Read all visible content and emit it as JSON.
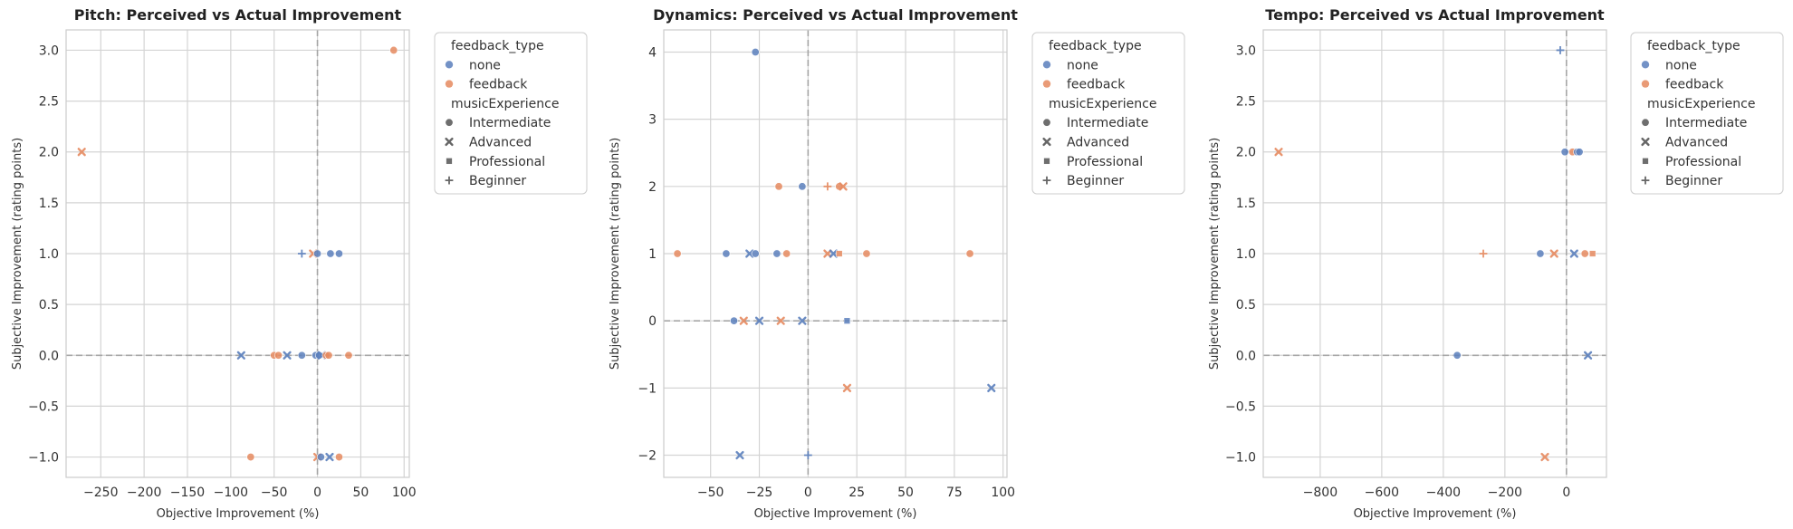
{
  "legend": {
    "hue_title": "feedback_type",
    "hue_items": [
      "none",
      "feedback"
    ],
    "style_title": "musicExperience",
    "style_items": [
      "Intermediate",
      "Advanced",
      "Professional",
      "Beginner"
    ]
  },
  "colors": {
    "none": "#5b7fbc",
    "feedback": "#e58a5f"
  },
  "chart_data": [
    {
      "type": "scatter",
      "title": "Pitch: Perceived vs Actual Improvement",
      "xlabel": "Objective Improvement (%)",
      "ylabel": "Subjective Improvement (rating points)",
      "xlim": [
        -290,
        106
      ],
      "ylim": [
        -1.2,
        3.2
      ],
      "xticks": [
        -250,
        -200,
        -150,
        -100,
        -50,
        0,
        50,
        100
      ],
      "yticks": [
        -1.0,
        -0.5,
        0.0,
        0.5,
        1.0,
        1.5,
        2.0,
        2.5,
        3.0
      ],
      "grid": true,
      "legend_position": "outside right",
      "reference_lines": {
        "x": 0,
        "y": 0
      },
      "points": [
        {
          "x": 88,
          "y": 3,
          "feedback_type": "feedback",
          "musicExperience": "Intermediate"
        },
        {
          "x": -272,
          "y": 2,
          "feedback_type": "feedback",
          "musicExperience": "Advanced"
        },
        {
          "x": -18,
          "y": 1,
          "feedback_type": "none",
          "musicExperience": "Beginner"
        },
        {
          "x": -5,
          "y": 1,
          "feedback_type": "feedback",
          "musicExperience": "Advanced"
        },
        {
          "x": 0,
          "y": 1,
          "feedback_type": "none",
          "musicExperience": "Intermediate"
        },
        {
          "x": 15,
          "y": 1,
          "feedback_type": "none",
          "musicExperience": "Intermediate"
        },
        {
          "x": 25,
          "y": 1,
          "feedback_type": "none",
          "musicExperience": "Intermediate"
        },
        {
          "x": -88,
          "y": 0,
          "feedback_type": "none",
          "musicExperience": "Advanced"
        },
        {
          "x": -50,
          "y": 0,
          "feedback_type": "feedback",
          "musicExperience": "Intermediate"
        },
        {
          "x": -45,
          "y": 0,
          "feedback_type": "feedback",
          "musicExperience": "Intermediate"
        },
        {
          "x": -35,
          "y": 0,
          "feedback_type": "none",
          "musicExperience": "Advanced"
        },
        {
          "x": -18,
          "y": 0,
          "feedback_type": "none",
          "musicExperience": "Intermediate"
        },
        {
          "x": -2,
          "y": 0,
          "feedback_type": "none",
          "musicExperience": "Intermediate"
        },
        {
          "x": 2,
          "y": 0,
          "feedback_type": "none",
          "musicExperience": "Intermediate"
        },
        {
          "x": 5,
          "y": 0,
          "feedback_type": "none",
          "musicExperience": "Advanced"
        },
        {
          "x": 10,
          "y": 0,
          "feedback_type": "feedback",
          "musicExperience": "Intermediate"
        },
        {
          "x": 13,
          "y": 0,
          "feedback_type": "feedback",
          "musicExperience": "Intermediate"
        },
        {
          "x": 36,
          "y": 0,
          "feedback_type": "feedback",
          "musicExperience": "Intermediate"
        },
        {
          "x": -77,
          "y": -1,
          "feedback_type": "feedback",
          "musicExperience": "Intermediate"
        },
        {
          "x": 0,
          "y": -1,
          "feedback_type": "feedback",
          "musicExperience": "Advanced"
        },
        {
          "x": 4,
          "y": -1,
          "feedback_type": "none",
          "musicExperience": "Intermediate"
        },
        {
          "x": 14,
          "y": -1,
          "feedback_type": "none",
          "musicExperience": "Advanced"
        },
        {
          "x": 25,
          "y": -1,
          "feedback_type": "feedback",
          "musicExperience": "Intermediate"
        }
      ]
    },
    {
      "type": "scatter",
      "title": "Dynamics: Perceived vs Actual Improvement",
      "xlabel": "Objective Improvement (%)",
      "ylabel": "Subjective Improvement (rating points)",
      "xlim": [
        -74,
        102
      ],
      "ylim": [
        -2.33,
        4.33
      ],
      "xticks": [
        -50,
        -25,
        0,
        25,
        50,
        75,
        100
      ],
      "yticks": [
        -2,
        -1,
        0,
        1,
        2,
        3,
        4
      ],
      "grid": true,
      "legend_position": "outside right",
      "reference_lines": {
        "x": 0,
        "y": 0
      },
      "points": [
        {
          "x": -27,
          "y": 4,
          "feedback_type": "none",
          "musicExperience": "Intermediate"
        },
        {
          "x": -15,
          "y": 2,
          "feedback_type": "feedback",
          "musicExperience": "Intermediate"
        },
        {
          "x": -3,
          "y": 2,
          "feedback_type": "none",
          "musicExperience": "Intermediate"
        },
        {
          "x": 10,
          "y": 2,
          "feedback_type": "feedback",
          "musicExperience": "Beginner"
        },
        {
          "x": 16,
          "y": 2,
          "feedback_type": "feedback",
          "musicExperience": "Intermediate"
        },
        {
          "x": 18,
          "y": 2,
          "feedback_type": "feedback",
          "musicExperience": "Advanced"
        },
        {
          "x": -67,
          "y": 1,
          "feedback_type": "feedback",
          "musicExperience": "Intermediate"
        },
        {
          "x": -42,
          "y": 1,
          "feedback_type": "none",
          "musicExperience": "Intermediate"
        },
        {
          "x": -30,
          "y": 1,
          "feedback_type": "none",
          "musicExperience": "Advanced"
        },
        {
          "x": -27,
          "y": 1,
          "feedback_type": "none",
          "musicExperience": "Intermediate"
        },
        {
          "x": -16,
          "y": 1,
          "feedback_type": "none",
          "musicExperience": "Intermediate"
        },
        {
          "x": -11,
          "y": 1,
          "feedback_type": "feedback",
          "musicExperience": "Intermediate"
        },
        {
          "x": 10,
          "y": 1,
          "feedback_type": "feedback",
          "musicExperience": "Advanced"
        },
        {
          "x": 13,
          "y": 1,
          "feedback_type": "none",
          "musicExperience": "Advanced"
        },
        {
          "x": 16,
          "y": 1,
          "feedback_type": "feedback",
          "musicExperience": "Professional"
        },
        {
          "x": 30,
          "y": 1,
          "feedback_type": "feedback",
          "musicExperience": "Intermediate"
        },
        {
          "x": 83,
          "y": 1,
          "feedback_type": "feedback",
          "musicExperience": "Intermediate"
        },
        {
          "x": -38,
          "y": 0,
          "feedback_type": "none",
          "musicExperience": "Intermediate"
        },
        {
          "x": -33,
          "y": 0,
          "feedback_type": "feedback",
          "musicExperience": "Advanced"
        },
        {
          "x": -25,
          "y": 0,
          "feedback_type": "none",
          "musicExperience": "Advanced"
        },
        {
          "x": -14,
          "y": 0,
          "feedback_type": "feedback",
          "musicExperience": "Advanced"
        },
        {
          "x": -3,
          "y": 0,
          "feedback_type": "none",
          "musicExperience": "Advanced"
        },
        {
          "x": 20,
          "y": 0,
          "feedback_type": "none",
          "musicExperience": "Professional"
        },
        {
          "x": 20,
          "y": -1,
          "feedback_type": "feedback",
          "musicExperience": "Advanced"
        },
        {
          "x": 94,
          "y": -1,
          "feedback_type": "none",
          "musicExperience": "Advanced"
        },
        {
          "x": -35,
          "y": -2,
          "feedback_type": "none",
          "musicExperience": "Advanced"
        },
        {
          "x": 0,
          "y": -2,
          "feedback_type": "none",
          "musicExperience": "Beginner"
        }
      ]
    },
    {
      "type": "scatter",
      "title": "Tempo: Perceived vs Actual Improvement",
      "xlabel": "Objective Improvement (%)",
      "ylabel": "Subjective Improvement (rating points)",
      "xlim": [
        -985,
        130
      ],
      "ylim": [
        -1.2,
        3.2
      ],
      "xticks": [
        -800,
        -600,
        -400,
        -200,
        0
      ],
      "yticks": [
        -1.0,
        -0.5,
        0.0,
        0.5,
        1.0,
        1.5,
        2.0,
        2.5,
        3.0
      ],
      "grid": true,
      "legend_position": "outside right",
      "reference_lines": {
        "x": 0,
        "y": 0
      },
      "points": [
        {
          "x": -20,
          "y": 3,
          "feedback_type": "none",
          "musicExperience": "Beginner"
        },
        {
          "x": -935,
          "y": 2,
          "feedback_type": "feedback",
          "musicExperience": "Advanced"
        },
        {
          "x": -5,
          "y": 2,
          "feedback_type": "none",
          "musicExperience": "Intermediate"
        },
        {
          "x": 20,
          "y": 2,
          "feedback_type": "feedback",
          "musicExperience": "Intermediate"
        },
        {
          "x": 35,
          "y": 2,
          "feedback_type": "none",
          "musicExperience": "Intermediate"
        },
        {
          "x": 42,
          "y": 2,
          "feedback_type": "none",
          "musicExperience": "Intermediate"
        },
        {
          "x": -270,
          "y": 1,
          "feedback_type": "feedback",
          "musicExperience": "Beginner"
        },
        {
          "x": -85,
          "y": 1,
          "feedback_type": "none",
          "musicExperience": "Intermediate"
        },
        {
          "x": -40,
          "y": 1,
          "feedback_type": "feedback",
          "musicExperience": "Advanced"
        },
        {
          "x": 25,
          "y": 1,
          "feedback_type": "none",
          "musicExperience": "Advanced"
        },
        {
          "x": 60,
          "y": 1,
          "feedback_type": "feedback",
          "musicExperience": "Intermediate"
        },
        {
          "x": 85,
          "y": 1,
          "feedback_type": "feedback",
          "musicExperience": "Professional"
        },
        {
          "x": -355,
          "y": 0,
          "feedback_type": "none",
          "musicExperience": "Intermediate"
        },
        {
          "x": 70,
          "y": 0,
          "feedback_type": "none",
          "musicExperience": "Advanced"
        },
        {
          "x": -70,
          "y": -1,
          "feedback_type": "feedback",
          "musicExperience": "Advanced"
        }
      ]
    }
  ]
}
